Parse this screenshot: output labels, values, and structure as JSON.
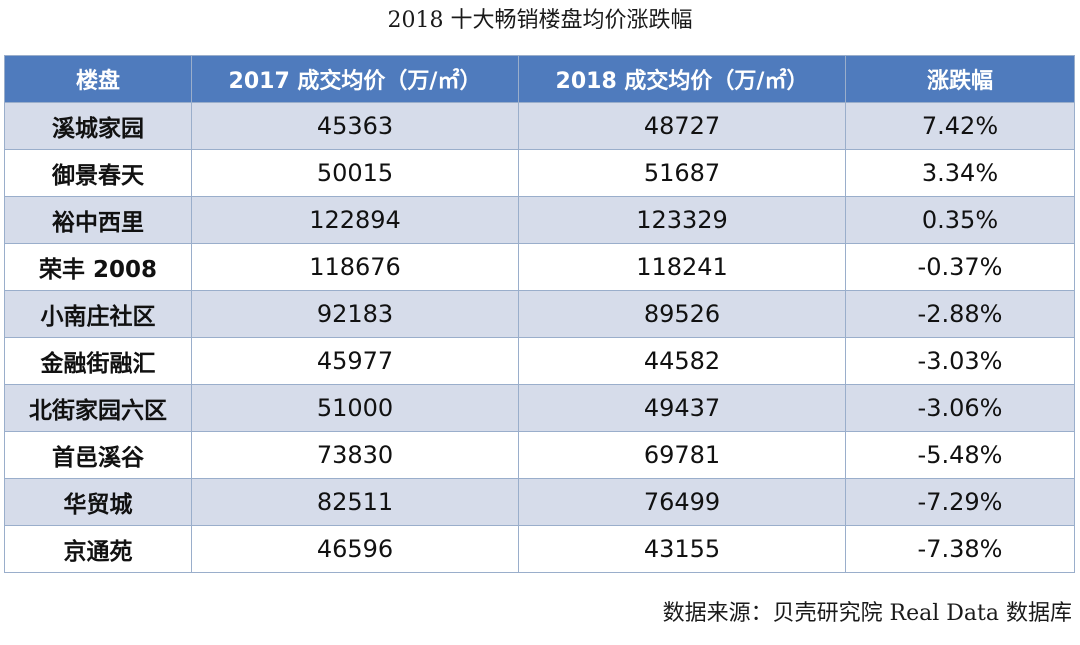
{
  "title": "2018 十大畅销楼盘均价涨跌幅",
  "source": "数据来源：贝壳研究院 Real Data 数据库",
  "colors": {
    "header_bg": "#4f7bbd",
    "header_text": "#ffffff",
    "band_row": "#d6dcea",
    "plain_row": "#ffffff",
    "grid": "#9aaecb"
  },
  "chart_data": {
    "type": "table",
    "title": "2018 十大畅销楼盘均价涨跌幅",
    "columns": [
      "楼盘",
      "2017 成交均价（万/㎡）",
      "2018 成交均价（万/㎡）",
      "涨跌幅"
    ],
    "rows": [
      [
        "溪城家园",
        "45363",
        "48727",
        "7.42%"
      ],
      [
        "御景春天",
        "50015",
        "51687",
        "3.34%"
      ],
      [
        "裕中西里",
        "122894",
        "123329",
        "0.35%"
      ],
      [
        "荣丰 2008",
        "118676",
        "118241",
        "-0.37%"
      ],
      [
        "小南庄社区",
        "92183",
        "89526",
        "-2.88%"
      ],
      [
        "金融街融汇",
        "45977",
        "44582",
        "-3.03%"
      ],
      [
        "北街家园六区",
        "51000",
        "49437",
        "-3.06%"
      ],
      [
        "首邑溪谷",
        "73830",
        "69781",
        "-5.48%"
      ],
      [
        "华贸城",
        "82511",
        "76499",
        "-7.29%"
      ],
      [
        "京通苑",
        "46596",
        "43155",
        "-7.38%"
      ]
    ]
  }
}
